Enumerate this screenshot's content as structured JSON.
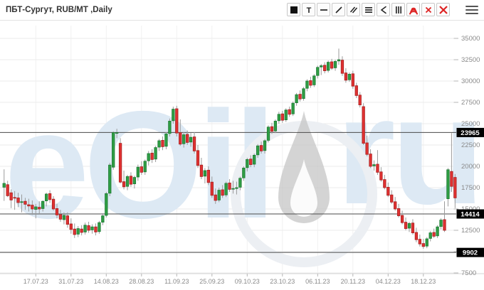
{
  "header": {
    "title": "ПБТ-Сургут, RUB/MT ,Daily"
  },
  "toolbar": {
    "buttons": [
      {
        "name": "color-swatch-tool",
        "icon": "black-square"
      },
      {
        "name": "text-tool",
        "icon": "letter-t"
      },
      {
        "name": "horizontal-line-tool",
        "icon": "horizontal-line"
      },
      {
        "name": "trend-line-tool",
        "icon": "diagonal-line"
      },
      {
        "name": "parallel-channel-tool",
        "icon": "double-diagonal"
      },
      {
        "name": "fibonacci-levels-tool",
        "icon": "triple-horizontal-lines"
      },
      {
        "name": "fan-tool",
        "icon": "angle-left"
      },
      {
        "name": "vertical-lines-tool",
        "icon": "triple-vertical-lines"
      },
      {
        "name": "fibonacci-arcs-tool",
        "icon": "red-arcs"
      },
      {
        "name": "delete-tool",
        "icon": "red-x-small"
      },
      {
        "name": "delete-all-tool",
        "icon": "red-x-large"
      }
    ],
    "menu_icon": "hamburger"
  },
  "colors": {
    "up": "#2f9e44",
    "up_border": "#1c7a33",
    "down": "#e03131",
    "down_border": "#a82222",
    "wick": "#9b9b9b",
    "grid": "#ebebeb",
    "axis_line": "#d5d5d5",
    "tick": "#b5b5b5",
    "axis_text": "#8a8a8a",
    "level_line": "#4a4a4a",
    "level_label_bg": "#000000",
    "level_label_text": "#ffffff",
    "watermark_text": "#dde9f4",
    "watermark_drop": "#c6c6c6",
    "watermark_ring": "#eceff3",
    "tool_red": "#dd2222",
    "tool_dark": "#222222"
  },
  "chart_data": {
    "type": "candlestick",
    "title": "ПБТ-Сургут, RUB/MT, Daily",
    "watermark": "eOil.ru",
    "y_axis": {
      "min": 7500,
      "max": 35000,
      "step": 2500,
      "tick_labels": [
        "35000",
        "32500",
        "30000",
        "27500",
        "25000",
        "22500",
        "20000",
        "17500",
        "15000",
        "12500",
        "10000",
        "7500"
      ]
    },
    "x_ticks": [
      {
        "index": 9,
        "label": "17.07.23"
      },
      {
        "index": 19,
        "label": "31.07.23"
      },
      {
        "index": 29,
        "label": "14.08.23"
      },
      {
        "index": 39,
        "label": "28.08.23"
      },
      {
        "index": 49,
        "label": "11.09.23"
      },
      {
        "index": 59,
        "label": "25.09.23"
      },
      {
        "index": 69,
        "label": "09.10.23"
      },
      {
        "index": 79,
        "label": "23.10.23"
      },
      {
        "index": 89,
        "label": "06.11.23"
      },
      {
        "index": 99,
        "label": "20.11.23"
      },
      {
        "index": 109,
        "label": "04.12.23"
      },
      {
        "index": 119,
        "label": "18.12.23"
      }
    ],
    "levels": [
      {
        "value": 23965,
        "label": "23965"
      },
      {
        "value": 14414,
        "label": "14414"
      },
      {
        "value": 9902,
        "label": "9902"
      }
    ],
    "candles": [
      [
        "04.07.23",
        17550,
        19650,
        15950,
        18000
      ],
      [
        "05.07.23",
        17850,
        18300,
        16400,
        16550
      ],
      [
        "06.07.23",
        16900,
        17300,
        15100,
        16050
      ],
      [
        "07.07.23",
        16350,
        17100,
        14900,
        16300
      ],
      [
        "10.07.23",
        16300,
        16900,
        15200,
        15750
      ],
      [
        "11.07.23",
        15800,
        16700,
        14600,
        15850
      ],
      [
        "12.07.23",
        15900,
        16300,
        14900,
        15550
      ],
      [
        "13.07.23",
        15500,
        16200,
        14700,
        15350
      ],
      [
        "14.07.23",
        15450,
        16000,
        14300,
        15000
      ],
      [
        "17.07.23",
        14950,
        15600,
        13900,
        15250
      ],
      [
        "18.07.23",
        15200,
        15900,
        14500,
        15000
      ],
      [
        "19.07.23",
        15050,
        16000,
        14700,
        15900
      ],
      [
        "20.07.23",
        15950,
        16900,
        15300,
        16750
      ],
      [
        "21.07.23",
        16800,
        17200,
        15700,
        16100
      ],
      [
        "24.07.23",
        16150,
        16500,
        14800,
        15000
      ],
      [
        "25.07.23",
        15050,
        15600,
        13900,
        14300
      ],
      [
        "26.07.23",
        14350,
        14900,
        13500,
        13800
      ],
      [
        "27.07.23",
        13750,
        14600,
        13200,
        14250
      ],
      [
        "28.07.23",
        14200,
        14600,
        12800,
        13200
      ],
      [
        "31.07.23",
        13250,
        13900,
        12100,
        12600
      ],
      [
        "01.08.23",
        12650,
        13300,
        11600,
        12000
      ],
      [
        "02.08.23",
        12050,
        13000,
        11700,
        12700
      ],
      [
        "03.08.23",
        12650,
        13100,
        11900,
        12250
      ],
      [
        "04.08.23",
        12300,
        13400,
        12000,
        13100
      ],
      [
        "07.08.23",
        13050,
        13500,
        12200,
        12500
      ],
      [
        "08.08.23",
        12550,
        13200,
        12100,
        12900
      ],
      [
        "09.08.23",
        12900,
        13300,
        11900,
        12300
      ],
      [
        "10.08.23",
        12350,
        13600,
        12100,
        13400
      ],
      [
        "11.08.23",
        13450,
        14500,
        13100,
        14200
      ],
      [
        "14.08.23",
        14250,
        17000,
        14000,
        16800
      ],
      [
        "15.08.23",
        16850,
        20400,
        16500,
        20150
      ],
      [
        "16.08.23",
        19900,
        24100,
        19600,
        23950
      ],
      [
        "17.08.23",
        23900,
        24400,
        23300,
        23950
      ],
      [
        "18.08.23",
        22700,
        23300,
        18000,
        18150
      ],
      [
        "21.08.23",
        18200,
        19500,
        17300,
        17600
      ],
      [
        "22.08.23",
        17650,
        19000,
        17200,
        18800
      ],
      [
        "23.08.23",
        18850,
        19300,
        17600,
        17900
      ],
      [
        "24.08.23",
        17950,
        18900,
        17400,
        18700
      ],
      [
        "25.08.23",
        18750,
        20200,
        18300,
        19900
      ],
      [
        "28.08.23",
        19950,
        20600,
        19000,
        19300
      ],
      [
        "29.08.23",
        19350,
        20800,
        19000,
        20600
      ],
      [
        "30.08.23",
        20650,
        21800,
        20100,
        21500
      ],
      [
        "31.08.23",
        21550,
        22000,
        20400,
        20800
      ],
      [
        "01.09.23",
        20850,
        22400,
        20500,
        22200
      ],
      [
        "04.09.23",
        22250,
        23200,
        21800,
        23000
      ],
      [
        "05.09.23",
        23050,
        23500,
        21900,
        22300
      ],
      [
        "06.09.23",
        22350,
        24000,
        22000,
        23800
      ],
      [
        "07.09.23",
        23850,
        25600,
        23500,
        25300
      ],
      [
        "08.09.23",
        25350,
        27000,
        25000,
        26700
      ],
      [
        "11.09.23",
        26750,
        27100,
        23500,
        23900
      ],
      [
        "12.09.23",
        23950,
        25500,
        22400,
        22600
      ],
      [
        "13.09.23",
        22650,
        24000,
        22200,
        23700
      ],
      [
        "14.09.23",
        23750,
        24200,
        22500,
        22800
      ],
      [
        "15.09.23",
        22850,
        23900,
        22300,
        23400
      ],
      [
        "18.09.23",
        23450,
        24000,
        21500,
        21800
      ],
      [
        "19.09.23",
        21850,
        22500,
        19800,
        20100
      ],
      [
        "20.09.23",
        20150,
        21000,
        18500,
        18800
      ],
      [
        "21.09.23",
        18850,
        19800,
        18000,
        19500
      ],
      [
        "22.09.23",
        19550,
        20000,
        17800,
        18100
      ],
      [
        "25.09.23",
        18150,
        18800,
        16300,
        16600
      ],
      [
        "26.09.23",
        16650,
        17400,
        15600,
        16000
      ],
      [
        "27.09.23",
        16050,
        17500,
        15800,
        17200
      ],
      [
        "28.09.23",
        17250,
        17800,
        16300,
        16600
      ],
      [
        "29.09.23",
        16650,
        18200,
        16400,
        18000
      ],
      [
        "02.10.23",
        18050,
        18500,
        17000,
        17300
      ],
      [
        "03.10.23",
        17350,
        18300,
        16800,
        17400
      ],
      [
        "04.10.23",
        17400,
        18200,
        16700,
        17500
      ],
      [
        "05.10.23",
        17550,
        18800,
        17200,
        18600
      ],
      [
        "06.10.23",
        18650,
        20000,
        18300,
        19800
      ],
      [
        "09.10.23",
        19850,
        21000,
        19400,
        20800
      ],
      [
        "10.10.23",
        20850,
        21300,
        19900,
        20200
      ],
      [
        "11.10.23",
        20250,
        21500,
        19900,
        21300
      ],
      [
        "12.10.23",
        21350,
        22600,
        21000,
        22400
      ],
      [
        "13.10.23",
        22450,
        22900,
        21500,
        21800
      ],
      [
        "16.10.23",
        21850,
        23200,
        21500,
        23000
      ],
      [
        "17.10.23",
        23050,
        24800,
        22800,
        24600
      ],
      [
        "18.10.23",
        24650,
        25100,
        23800,
        24100
      ],
      [
        "19.10.23",
        24150,
        25500,
        23900,
        25300
      ],
      [
        "20.10.23",
        25350,
        26400,
        25000,
        26100
      ],
      [
        "23.10.23",
        26150,
        26500,
        25100,
        25400
      ],
      [
        "24.10.23",
        25450,
        26800,
        25200,
        26600
      ],
      [
        "25.10.23",
        26650,
        27000,
        25800,
        26100
      ],
      [
        "26.10.23",
        26150,
        27600,
        25900,
        27400
      ],
      [
        "27.10.23",
        27450,
        28600,
        27100,
        28400
      ],
      [
        "30.10.23",
        28450,
        28900,
        27600,
        27900
      ],
      [
        "31.10.23",
        27950,
        29300,
        27700,
        29100
      ],
      [
        "01.11.23",
        29150,
        30200,
        28800,
        30000
      ],
      [
        "02.11.23",
        30050,
        30500,
        29200,
        29500
      ],
      [
        "03.11.23",
        29550,
        30800,
        29300,
        30600
      ],
      [
        "06.11.23",
        30650,
        31800,
        30300,
        31600
      ],
      [
        "07.11.23",
        31650,
        32000,
        30700,
        31800
      ],
      [
        "08.11.23",
        31850,
        32200,
        30900,
        31200
      ],
      [
        "09.11.23",
        31250,
        32400,
        31000,
        32200
      ],
      [
        "10.11.23",
        32250,
        32600,
        31300,
        31500
      ],
      [
        "13.11.23",
        31550,
        32500,
        31200,
        32300
      ],
      [
        "14.11.23",
        32350,
        33800,
        31900,
        32500
      ],
      [
        "15.11.23",
        32450,
        32900,
        30600,
        30900
      ],
      [
        "16.11.23",
        30950,
        31500,
        29800,
        30100
      ],
      [
        "17.11.23",
        30150,
        31000,
        29900,
        30800
      ],
      [
        "20.11.23",
        30850,
        31200,
        29100,
        29400
      ],
      [
        "21.11.23",
        29450,
        29800,
        28000,
        28300
      ],
      [
        "22.11.23",
        28350,
        28700,
        26900,
        27200
      ],
      [
        "23.11.23",
        27000,
        27400,
        22500,
        22700
      ],
      [
        "24.11.23",
        22750,
        23600,
        21200,
        21400
      ],
      [
        "27.11.23",
        21450,
        22000,
        19800,
        20000
      ],
      [
        "28.11.23",
        20050,
        20700,
        19500,
        20200
      ],
      [
        "29.11.23",
        20250,
        21900,
        19000,
        19300
      ],
      [
        "30.11.23",
        19350,
        19900,
        18200,
        18400
      ],
      [
        "01.12.23",
        18450,
        19000,
        17300,
        17500
      ],
      [
        "04.12.23",
        17550,
        18100,
        16400,
        16600
      ],
      [
        "05.12.23",
        16650,
        17200,
        15600,
        15800
      ],
      [
        "06.12.23",
        15850,
        16400,
        14800,
        15000
      ],
      [
        "07.12.23",
        15050,
        15600,
        14000,
        14200
      ],
      [
        "08.12.23",
        14250,
        14800,
        13200,
        13400
      ],
      [
        "11.12.23",
        13450,
        14000,
        12500,
        12700
      ],
      [
        "12.12.23",
        12750,
        13500,
        12300,
        13300
      ],
      [
        "13.12.23",
        13350,
        13800,
        12000,
        12200
      ],
      [
        "14.12.23",
        12250,
        12800,
        11100,
        11400
      ],
      [
        "15.12.23",
        11450,
        12000,
        10600,
        10900
      ],
      [
        "18.12.23",
        10950,
        11500,
        10330,
        10600
      ],
      [
        "19.12.23",
        10650,
        11700,
        10400,
        11500
      ],
      [
        "20.12.23",
        11550,
        12400,
        11200,
        12200
      ],
      [
        "21.12.23",
        12250,
        12700,
        11600,
        11800
      ],
      [
        "22.12.23",
        11850,
        13100,
        11600,
        12900
      ],
      [
        "25.12.23",
        12950,
        13900,
        12600,
        13700
      ],
      [
        "26.12.23",
        13750,
        15900,
        12300,
        12500
      ],
      [
        "27.12.23",
        16200,
        19800,
        15300,
        19600
      ],
      [
        "28.12.23",
        19400,
        23900,
        17000,
        17650
      ],
      [
        "29.12.23",
        18700,
        19100,
        15100,
        16300
      ]
    ]
  }
}
